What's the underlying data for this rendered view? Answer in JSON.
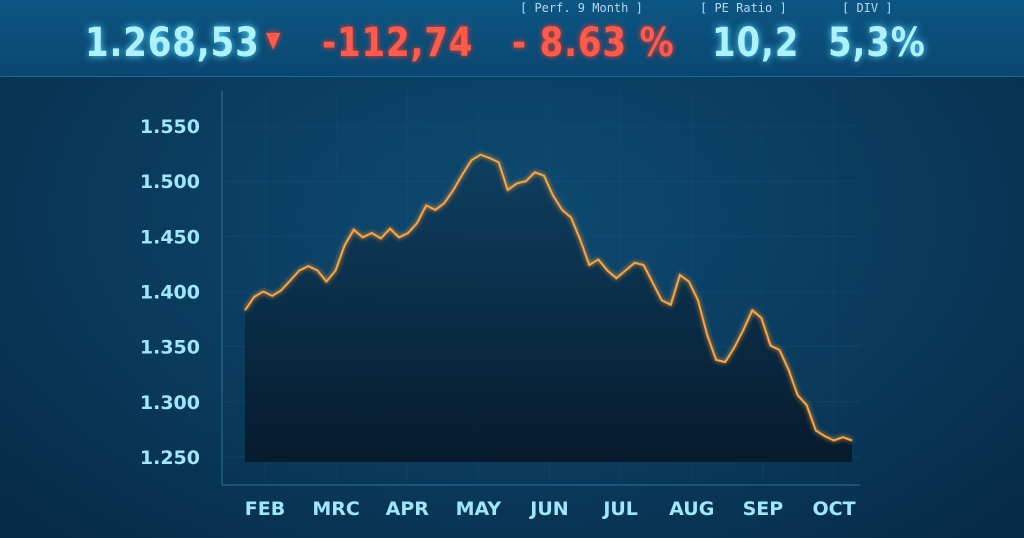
{
  "ticker": {
    "price": "1.268,53",
    "arrow_icon": "triangle-down-icon",
    "change": "-112,74",
    "perf_label": "[ Perf. 9 Month ]",
    "perf": "- 8.63 %",
    "pe_label": "[ PE Ratio ]",
    "pe": "10,2",
    "div_label": "[ DIV ]",
    "div": "5,3%"
  },
  "colors": {
    "line": "#ff9a2e",
    "positive": "#aef2ff",
    "negative": "#ff5a4a"
  },
  "chart_data": {
    "type": "line",
    "title": "",
    "xlabel": "",
    "ylabel": "",
    "ylim": [
      1250,
      1560
    ],
    "grid": true,
    "y_ticks": [
      "1.550",
      "1.500",
      "1.450",
      "1.400",
      "1.350",
      "1.300",
      "1.250"
    ],
    "y_tick_values": [
      1550,
      1500,
      1450,
      1400,
      1350,
      1300,
      1250
    ],
    "x_ticks": [
      "FEB",
      "MRC",
      "APR",
      "MAY",
      "JUN",
      "JUL",
      "AUG",
      "SEP",
      "OCT"
    ],
    "values": [
      1383,
      1395,
      1400,
      1396,
      1401,
      1410,
      1419,
      1423,
      1419,
      1409,
      1419,
      1442,
      1456,
      1449,
      1453,
      1448,
      1457,
      1449,
      1453,
      1462,
      1478,
      1474,
      1480,
      1492,
      1506,
      1519,
      1524,
      1521,
      1517,
      1492,
      1498,
      1500,
      1508,
      1505,
      1487,
      1474,
      1467,
      1447,
      1424,
      1429,
      1419,
      1412,
      1419,
      1426,
      1424,
      1408,
      1392,
      1388,
      1415,
      1409,
      1392,
      1361,
      1338,
      1336,
      1349,
      1365,
      1383,
      1376,
      1351,
      1347,
      1329,
      1306,
      1297,
      1274,
      1269,
      1265,
      1268,
      1265
    ]
  }
}
